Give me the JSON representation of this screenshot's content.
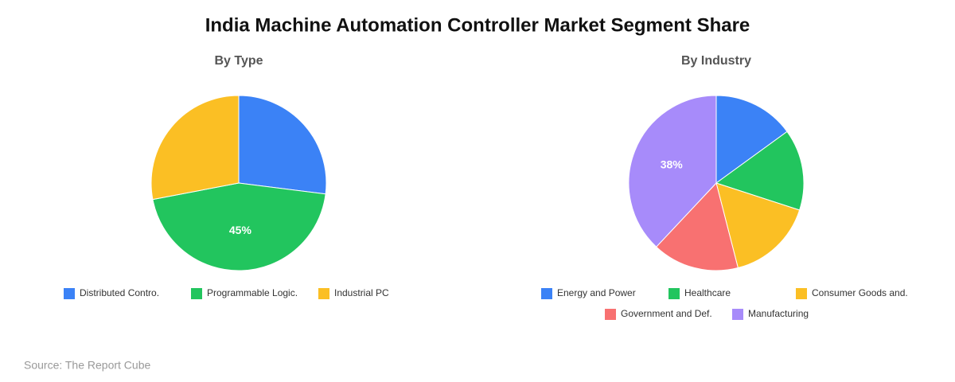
{
  "title": "India Machine Automation Controller Market Segment Share",
  "source": "Source: The Report Cube",
  "chart_data": [
    {
      "type": "pie",
      "title": "By Type",
      "categories": [
        "Distributed Contro.",
        "Programmable Logic.",
        "Industrial PC"
      ],
      "values": [
        27,
        45,
        28
      ],
      "value_labels": [
        null,
        "45%",
        null
      ],
      "colors": [
        "#3b82f6",
        "#22c55e",
        "#fbbf24"
      ]
    },
    {
      "type": "pie",
      "title": "By Industry",
      "categories": [
        "Energy and Power",
        "Healthcare",
        "Consumer Goods and.",
        "Government and Def.",
        "Manufacturing"
      ],
      "values": [
        15,
        15,
        16,
        16,
        38
      ],
      "value_labels": [
        null,
        null,
        null,
        null,
        "38%"
      ],
      "colors": [
        "#3b82f6",
        "#22c55e",
        "#fbbf24",
        "#f87171",
        "#a78bfa"
      ]
    }
  ]
}
